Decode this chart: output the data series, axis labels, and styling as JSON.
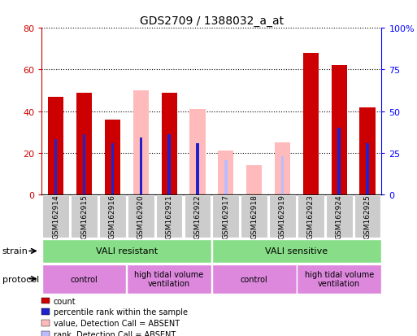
{
  "title": "GDS2709 / 1388032_a_at",
  "samples": [
    "GSM162914",
    "GSM162915",
    "GSM162916",
    "GSM162920",
    "GSM162921",
    "GSM162922",
    "GSM162917",
    "GSM162918",
    "GSM162919",
    "GSM162923",
    "GSM162924",
    "GSM162925"
  ],
  "count": [
    47,
    49,
    36,
    0,
    49,
    0,
    0,
    0,
    0,
    68,
    62,
    42
  ],
  "count_absent": [
    0,
    0,
    0,
    50,
    0,
    41,
    21,
    14,
    25,
    0,
    0,
    0
  ],
  "percentile_rank": [
    33,
    36,
    31,
    34,
    36,
    31,
    0,
    0,
    0,
    0,
    40,
    31
  ],
  "percentile_rank_absent": [
    0,
    0,
    0,
    0,
    0,
    0,
    20.5,
    0,
    23,
    0,
    0,
    0
  ],
  "ylim_left": [
    0,
    80
  ],
  "ylim_right": [
    0,
    100
  ],
  "yticks_left": [
    0,
    20,
    40,
    60,
    80
  ],
  "yticks_right": [
    0,
    25,
    50,
    75,
    100
  ],
  "color_red": "#cc0000",
  "color_blue": "#2222cc",
  "color_pink": "#ffbbbb",
  "color_lightblue": "#bbbbff",
  "color_green": "#88dd88",
  "color_magenta": "#dd88dd",
  "color_gray": "#cccccc",
  "strain_groups": [
    {
      "label": "VALI resistant",
      "start": 0,
      "end": 6
    },
    {
      "label": "VALI sensitive",
      "start": 6,
      "end": 12
    }
  ],
  "protocol_groups": [
    {
      "label": "control",
      "start": 0,
      "end": 3
    },
    {
      "label": "high tidal volume\nventilation",
      "start": 3,
      "end": 6
    },
    {
      "label": "control",
      "start": 6,
      "end": 9
    },
    {
      "label": "high tidal volume\nventilation",
      "start": 9,
      "end": 12
    }
  ],
  "legend_items": [
    {
      "label": "count",
      "color": "#cc0000"
    },
    {
      "label": "percentile rank within the sample",
      "color": "#2222cc"
    },
    {
      "label": "value, Detection Call = ABSENT",
      "color": "#ffbbbb"
    },
    {
      "label": "rank, Detection Call = ABSENT",
      "color": "#bbbbff"
    }
  ]
}
